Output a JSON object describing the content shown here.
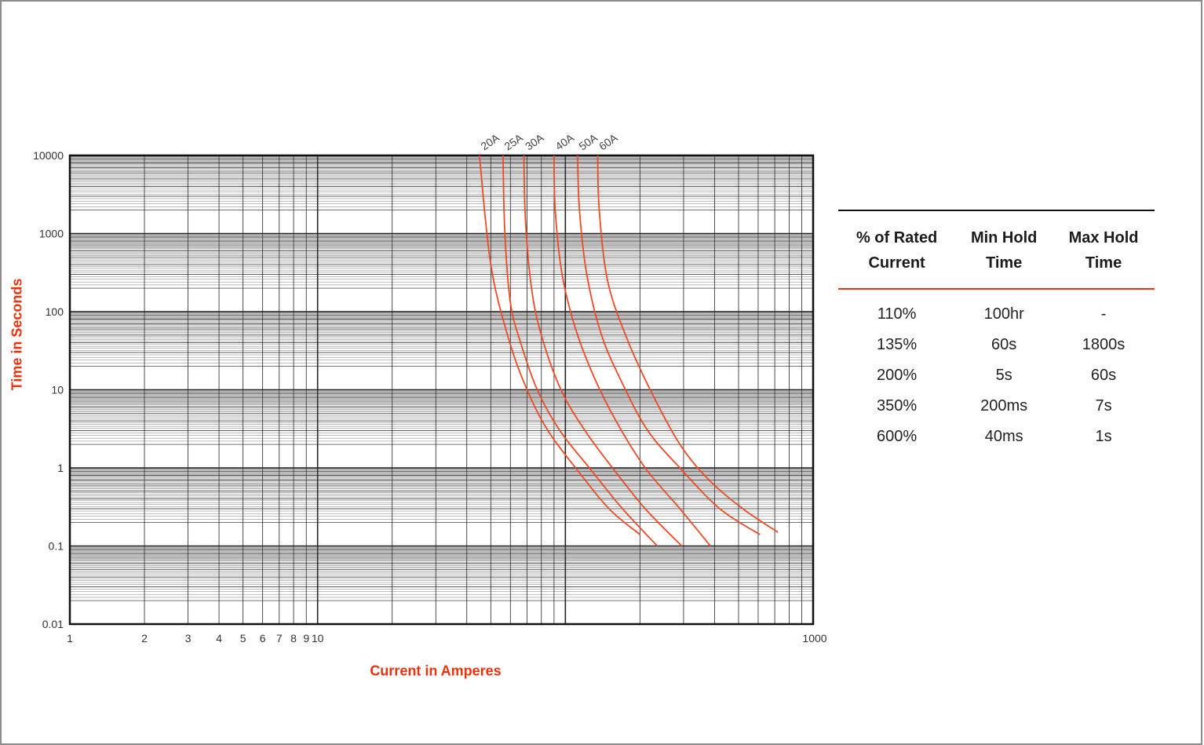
{
  "chart_data": {
    "type": "line",
    "title": "",
    "xlabel": "Current in Amperes",
    "ylabel": "Time in Seconds",
    "x_scale": "log",
    "y_scale": "log",
    "xlim": [
      1,
      1000
    ],
    "ylim": [
      0.01,
      10000
    ],
    "grid": true,
    "x_tick_labels": [
      "1",
      "2",
      "3",
      "4",
      "5",
      "6",
      "7",
      "8",
      "9",
      "10",
      "1000"
    ],
    "x_tick_values": [
      1,
      2,
      3,
      4,
      5,
      6,
      7,
      8,
      9,
      10,
      1000
    ],
    "y_tick_labels": [
      "10000",
      "1000",
      "100",
      "10",
      "1",
      "0.1",
      "0.01"
    ],
    "y_tick_values": [
      10000,
      1000,
      100,
      10,
      1,
      0.1,
      0.01
    ],
    "series_color": "#ee4a26",
    "series": [
      {
        "name": "20A",
        "points": [
          [
            45,
            10000
          ],
          [
            50,
            400
          ],
          [
            59,
            45
          ],
          [
            70,
            10
          ],
          [
            85,
            3
          ],
          [
            110,
            1
          ],
          [
            150,
            0.3
          ],
          [
            200,
            0.14
          ]
        ]
      },
      {
        "name": "25A",
        "points": [
          [
            56,
            10000
          ],
          [
            57,
            1000
          ],
          [
            60,
            130
          ],
          [
            66,
            40
          ],
          [
            77,
            10
          ],
          [
            95,
            3
          ],
          [
            125,
            1
          ],
          [
            170,
            0.3
          ],
          [
            235,
            0.1
          ]
        ]
      },
      {
        "name": "30A",
        "points": [
          [
            68,
            10000
          ],
          [
            69,
            1500
          ],
          [
            73,
            200
          ],
          [
            80,
            50
          ],
          [
            96,
            10
          ],
          [
            120,
            3
          ],
          [
            155,
            1
          ],
          [
            210,
            0.3
          ],
          [
            295,
            0.1
          ]
        ]
      },
      {
        "name": "40A",
        "points": [
          [
            90,
            10000
          ],
          [
            91,
            2000
          ],
          [
            97,
            300
          ],
          [
            110,
            60
          ],
          [
            130,
            15
          ],
          [
            160,
            4
          ],
          [
            210,
            1
          ],
          [
            290,
            0.3
          ],
          [
            385,
            0.1
          ]
        ]
      },
      {
        "name": "50A",
        "points": [
          [
            112,
            10000
          ],
          [
            114,
            2000
          ],
          [
            122,
            300
          ],
          [
            140,
            50
          ],
          [
            170,
            12
          ],
          [
            215,
            3
          ],
          [
            290,
            1
          ],
          [
            420,
            0.3
          ],
          [
            610,
            0.14
          ]
        ]
      },
      {
        "name": "60A",
        "points": [
          [
            135,
            10000
          ],
          [
            137,
            2000
          ],
          [
            148,
            250
          ],
          [
            175,
            50
          ],
          [
            220,
            10
          ],
          [
            290,
            2
          ],
          [
            380,
            0.7
          ],
          [
            520,
            0.3
          ],
          [
            720,
            0.15
          ]
        ]
      }
    ]
  },
  "table": {
    "headers": [
      {
        "line1": "% of Rated",
        "line2": "Current"
      },
      {
        "line1": "Min Hold",
        "line2": "Time"
      },
      {
        "line1": "Max Hold",
        "line2": "Time"
      }
    ],
    "rows": [
      [
        "110%",
        "100hr",
        "-"
      ],
      [
        "135%",
        "60s",
        "1800s"
      ],
      [
        "200%",
        "5s",
        "60s"
      ],
      [
        "350%",
        "200ms",
        "7s"
      ],
      [
        "600%",
        "40ms",
        "1s"
      ]
    ]
  }
}
